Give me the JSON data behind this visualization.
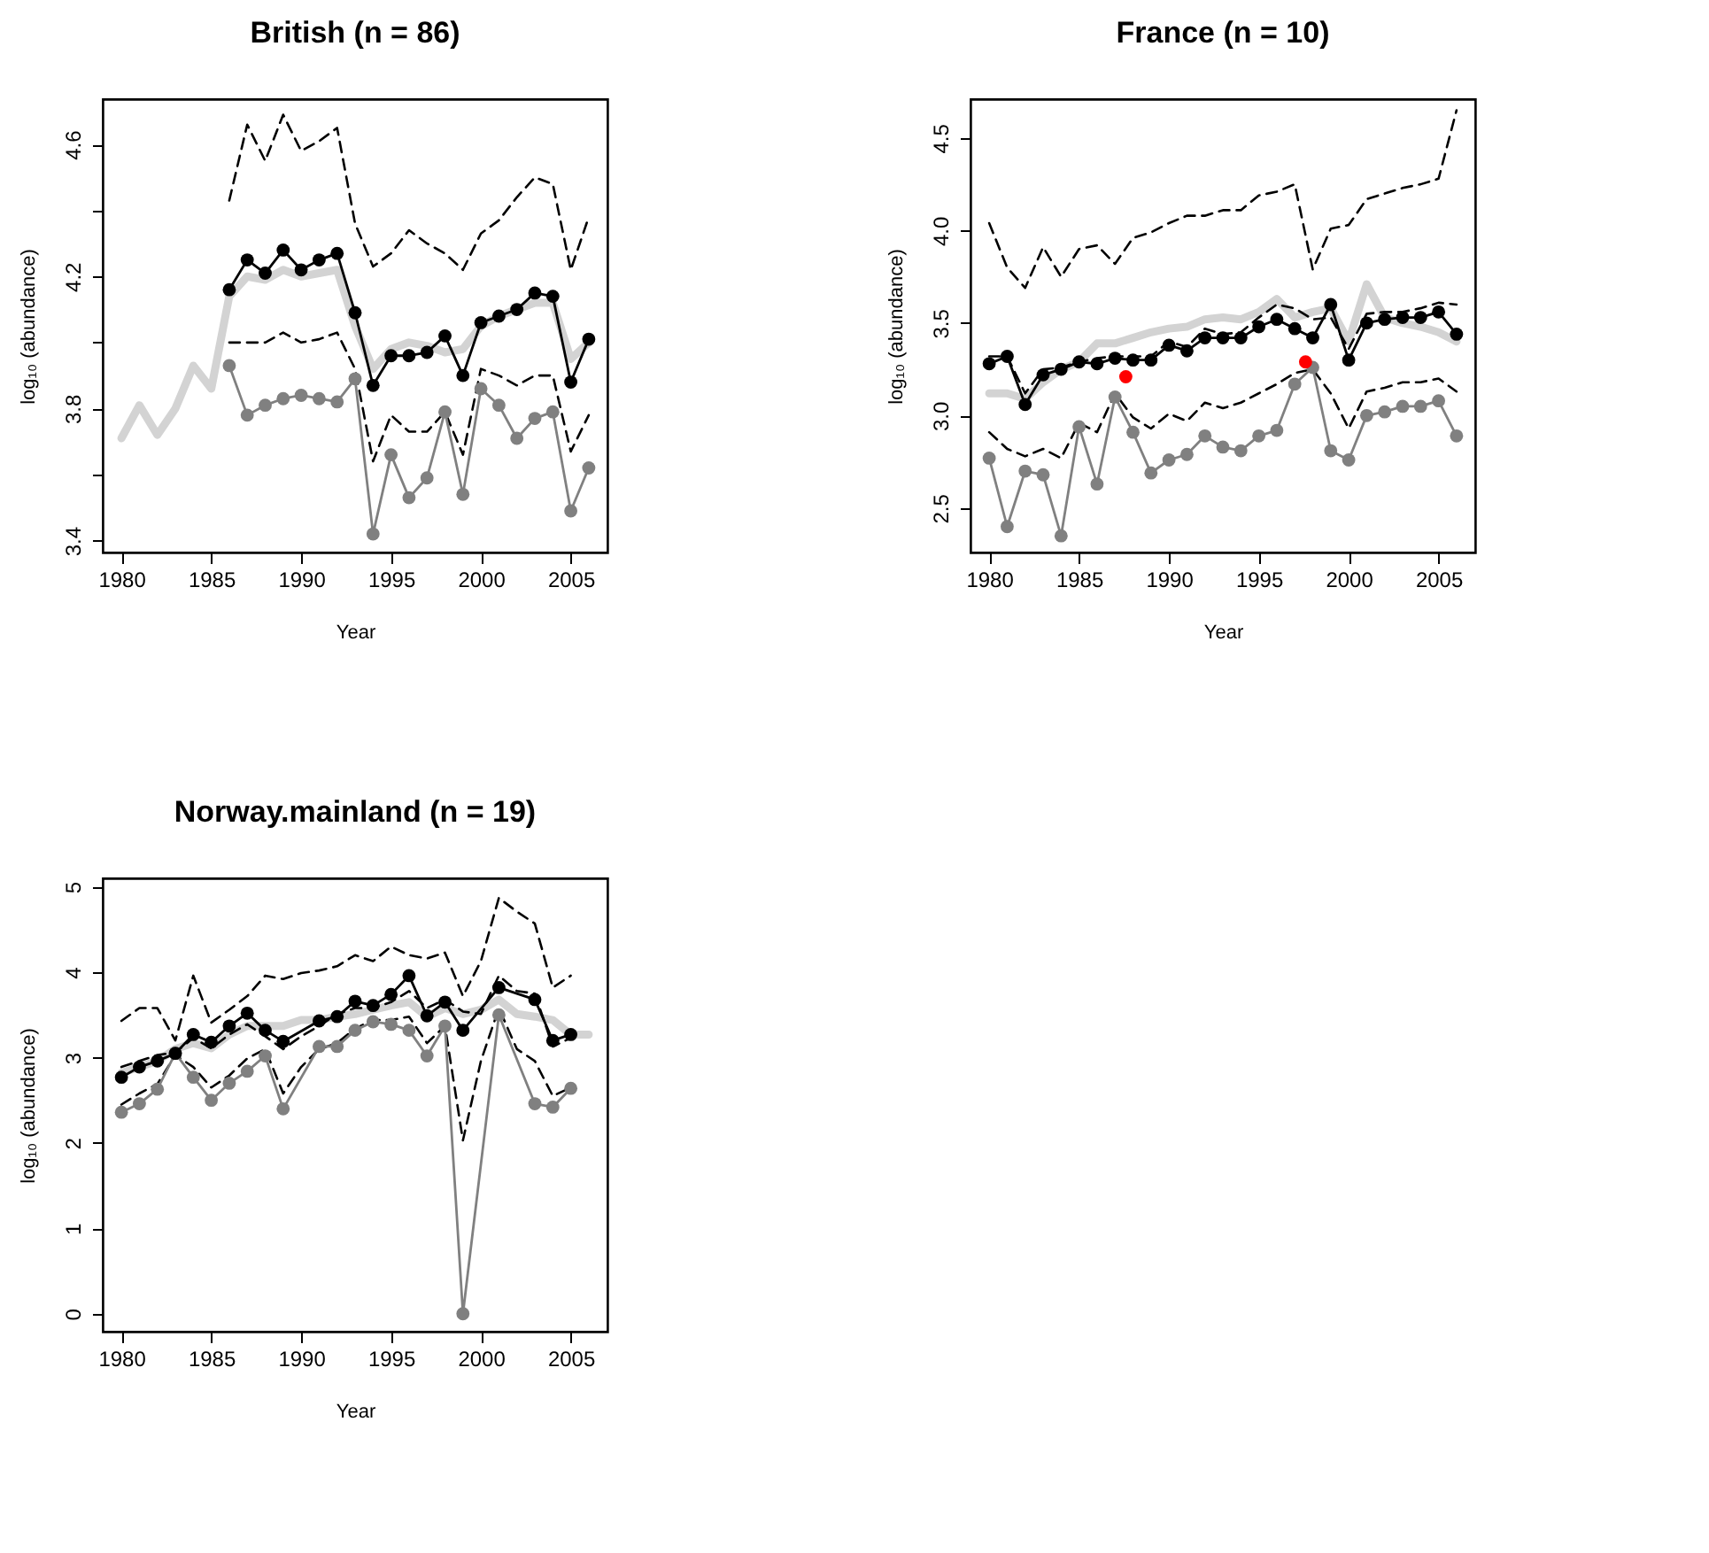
{
  "chart_data": [
    {
      "type": "line",
      "title": "British (n = 86)",
      "xlabel": "Year",
      "ylabel": "log₁₀ (abundance)",
      "xlim": [
        1978.96,
        2007.04
      ],
      "xticks": [
        1980,
        1985,
        1990,
        1995,
        2000,
        2005
      ],
      "ylim": [
        3.364,
        4.737
      ],
      "yticks": [
        3.4,
        {
          "value": 3.6,
          "label": null
        },
        3.8,
        {
          "value": 4.0,
          "label": null
        },
        4.2,
        {
          "value": 4.4,
          "label": null
        },
        4.6
      ],
      "series": [
        {
          "type": "line",
          "color": "#d3d3d3",
          "marker": "none",
          "line_style": "solid",
          "x": [
            1980,
            1981,
            1982,
            1983,
            1984,
            1985,
            1986,
            1987,
            1988,
            1989,
            1990,
            1991,
            1992,
            1993,
            1994,
            1995,
            1996,
            1997,
            1998,
            1999,
            2000,
            2001,
            2002,
            2003,
            2004,
            2005,
            2006
          ],
          "values": [
            3.71,
            3.81,
            3.72,
            3.8,
            3.93,
            3.86,
            4.14,
            4.2,
            4.19,
            4.22,
            4.2,
            4.21,
            4.22,
            4.05,
            3.92,
            3.98,
            4.0,
            3.99,
            3.97,
            3.98,
            4.05,
            4.08,
            4.1,
            4.12,
            4.12,
            3.95,
            4.0
          ]
        },
        {
          "type": "line",
          "color": "#000000",
          "marker": "none",
          "line_style": "dashed",
          "x": [
            1986,
            1987,
            1988,
            1989,
            1990,
            1991,
            1992,
            1993,
            1994,
            1995,
            1996,
            1997,
            1998,
            1999,
            2000,
            2001,
            2002,
            2003,
            2004,
            2005,
            2006
          ],
          "values": [
            4.43,
            4.66,
            4.55,
            4.69,
            4.58,
            4.61,
            4.65,
            4.36,
            4.23,
            4.27,
            4.34,
            4.3,
            4.27,
            4.22,
            4.33,
            4.37,
            4.44,
            4.5,
            4.48,
            4.22,
            4.38
          ]
        },
        {
          "type": "line",
          "color": "#000000",
          "marker": "none",
          "line_style": "dashed",
          "x": [
            1986,
            1987,
            1988,
            1989,
            1990,
            1991,
            1992,
            1993,
            1994,
            1995,
            1996,
            1997,
            1998,
            1999,
            2000,
            2001,
            2002,
            2003,
            2004,
            2005,
            2006
          ],
          "values": [
            4.0,
            4.0,
            4.0,
            4.03,
            4.0,
            4.01,
            4.03,
            3.92,
            3.64,
            3.78,
            3.73,
            3.73,
            3.79,
            3.66,
            3.92,
            3.9,
            3.87,
            3.9,
            3.9,
            3.67,
            3.78
          ]
        },
        {
          "type": "line",
          "color": "#808080",
          "marker": "circle",
          "line_style": "solid",
          "x": [
            1986,
            1987,
            1988,
            1989,
            1990,
            1991,
            1992,
            1993,
            1994,
            1995,
            1996,
            1997,
            1998,
            1999,
            2000,
            2001,
            2002,
            2003,
            2004,
            2005,
            2006
          ],
          "values": [
            3.93,
            3.78,
            3.81,
            3.83,
            3.84,
            3.83,
            3.82,
            3.89,
            3.42,
            3.66,
            3.53,
            3.59,
            3.79,
            3.54,
            3.86,
            3.81,
            3.71,
            3.77,
            3.79,
            3.49,
            3.62
          ]
        },
        {
          "type": "line",
          "color": "#000000",
          "marker": "circle",
          "line_style": "solid",
          "x": [
            1986,
            1987,
            1988,
            1989,
            1990,
            1991,
            1992,
            1993,
            1994,
            1995,
            1996,
            1997,
            1998,
            1999,
            2000,
            2001,
            2002,
            2003,
            2004,
            2005,
            2006
          ],
          "values": [
            4.16,
            4.25,
            4.21,
            4.28,
            4.22,
            4.25,
            4.27,
            4.09,
            3.87,
            3.96,
            3.96,
            3.97,
            4.02,
            3.9,
            4.06,
            4.08,
            4.1,
            4.15,
            4.14,
            3.88,
            4.01
          ]
        }
      ]
    },
    {
      "type": "line",
      "title": "France (n = 10)",
      "xlabel": "Year",
      "ylabel": "log₁₀ (abundance)",
      "xlim": [
        1978.96,
        2007.04
      ],
      "xticks": [
        1980,
        1985,
        1990,
        1995,
        2000,
        2005
      ],
      "ylim": [
        2.26,
        4.71
      ],
      "yticks": [
        2.5,
        {
          "value": 3,
          "label": "3.0"
        },
        3.5,
        {
          "value": 4,
          "label": "4.0"
        },
        4.5
      ],
      "x": [
        1980,
        1981,
        1982,
        1983,
        1984,
        1985,
        1986,
        1987,
        1988,
        1989,
        1990,
        1991,
        1992,
        1993,
        1994,
        1995,
        1996,
        1997,
        1998,
        1999,
        2000,
        2001,
        2002,
        2003,
        2004,
        2005,
        2006
      ],
      "series": [
        {
          "type": "line",
          "color": "#d3d3d3",
          "marker": "none",
          "line_style": "solid",
          "values": [
            3.12,
            3.12,
            3.09,
            3.18,
            3.25,
            3.29,
            3.39,
            3.39,
            3.42,
            3.45,
            3.47,
            3.48,
            3.52,
            3.53,
            3.52,
            3.56,
            3.63,
            3.53,
            3.56,
            3.58,
            3.4,
            3.71,
            3.53,
            3.5,
            3.48,
            3.45,
            3.4
          ]
        },
        {
          "type": "line",
          "color": "#000000",
          "marker": "none",
          "line_style": "dashed",
          "values": [
            4.04,
            3.8,
            3.69,
            3.91,
            3.75,
            3.9,
            3.92,
            3.82,
            3.96,
            3.99,
            4.04,
            4.08,
            4.08,
            4.11,
            4.11,
            4.19,
            4.21,
            4.25,
            3.79,
            4.01,
            4.03,
            4.17,
            4.2,
            4.23,
            4.25,
            4.28,
            4.65
          ]
        },
        {
          "type": "line",
          "color": "#000000",
          "marker": "none",
          "line_style": "dashed",
          "values": [
            3.32,
            3.32,
            3.12,
            3.25,
            3.26,
            3.29,
            3.31,
            3.32,
            3.32,
            3.32,
            3.4,
            3.37,
            3.47,
            3.44,
            3.45,
            3.53,
            3.6,
            3.58,
            3.52,
            3.53,
            3.36,
            3.55,
            3.56,
            3.56,
            3.58,
            3.61,
            3.6
          ]
        },
        {
          "type": "line",
          "color": "#000000",
          "marker": "none",
          "line_style": "dashed",
          "values": [
            2.91,
            2.82,
            2.78,
            2.82,
            2.77,
            2.96,
            2.91,
            3.12,
            2.99,
            2.93,
            3.01,
            2.97,
            3.07,
            3.04,
            3.07,
            3.12,
            3.17,
            3.23,
            3.25,
            3.12,
            2.93,
            3.13,
            3.15,
            3.18,
            3.18,
            3.2,
            3.13
          ]
        },
        {
          "type": "line",
          "color": "#808080",
          "marker": "circle",
          "line_style": "solid",
          "values": [
            2.77,
            2.4,
            2.7,
            2.68,
            2.35,
            2.94,
            2.63,
            3.1,
            2.91,
            2.69,
            2.76,
            2.79,
            2.89,
            2.83,
            2.81,
            2.89,
            2.92,
            3.17,
            3.26,
            2.81,
            2.76,
            3.0,
            3.02,
            3.05,
            3.05,
            3.08,
            2.89
          ]
        },
        {
          "type": "line",
          "color": "#000000",
          "marker": "circle",
          "line_style": "solid",
          "values": [
            3.28,
            3.32,
            3.06,
            3.22,
            3.25,
            3.29,
            3.28,
            3.31,
            3.3,
            3.3,
            3.38,
            3.35,
            3.42,
            3.42,
            3.42,
            3.48,
            3.52,
            3.47,
            3.42,
            3.6,
            3.3,
            3.5,
            3.52,
            3.53,
            3.53,
            3.56,
            3.44
          ]
        },
        {
          "type": "scatter",
          "color": "#ff0000",
          "marker": "circle",
          "x": [
            1987.6,
            1997.6
          ],
          "values": [
            3.21,
            3.29
          ]
        }
      ]
    },
    {
      "type": "line",
      "title": "Norway.mainland (n = 19)",
      "xlabel": "Year",
      "ylabel": "log₁₀ (abundance)",
      "xlim": [
        1978.96,
        2007.04
      ],
      "xticks": [
        1980,
        1985,
        1990,
        1995,
        2000,
        2005
      ],
      "ylim": [
        -0.21,
        5.1
      ],
      "yticks": [
        0,
        1,
        2,
        3,
        4,
        5
      ],
      "series": [
        {
          "type": "line",
          "color": "#d3d3d3",
          "marker": "none",
          "line_style": "solid",
          "x": [
            1980,
            1981,
            1982,
            1983,
            1984,
            1985,
            1986,
            1987,
            1988,
            1989,
            1990,
            1991,
            1992,
            1993,
            1994,
            1995,
            1996,
            1997,
            1998,
            1999,
            2000,
            2001,
            2002,
            2003,
            2004,
            2005,
            2006
          ],
          "values": [
            2.82,
            2.89,
            2.96,
            3.1,
            3.17,
            3.11,
            3.27,
            3.37,
            3.37,
            3.37,
            3.44,
            3.44,
            3.48,
            3.51,
            3.56,
            3.61,
            3.65,
            3.48,
            3.58,
            3.51,
            3.56,
            3.68,
            3.51,
            3.48,
            3.44,
            3.27,
            3.27
          ]
        },
        {
          "type": "line",
          "color": "#000000",
          "marker": "none",
          "line_style": "dashed",
          "x": [
            1980,
            1981,
            1982,
            1983,
            1984,
            1985,
            1986,
            1987,
            1988,
            1989,
            1990,
            1991,
            1992,
            1993,
            1994,
            1995,
            1996,
            1997,
            1998,
            1999,
            2000,
            2001,
            2002,
            2003,
            2004,
            2005
          ],
          "values": [
            3.43,
            3.58,
            3.58,
            3.2,
            3.96,
            3.41,
            3.56,
            3.72,
            3.96,
            3.92,
            3.99,
            4.02,
            4.07,
            4.2,
            4.13,
            4.3,
            4.2,
            4.16,
            4.23,
            3.72,
            4.13,
            4.87,
            4.71,
            4.57,
            3.82,
            3.96
          ]
        },
        {
          "type": "line",
          "color": "#000000",
          "marker": "none",
          "line_style": "dashed",
          "x": [
            1980,
            1981,
            1982,
            1983,
            1984,
            1985,
            1986,
            1987,
            1988,
            1989,
            1990,
            1991,
            1992,
            1993,
            1994,
            1995,
            1996,
            1997,
            1998,
            1999,
            2000,
            2001,
            2002,
            2003,
            2004,
            2005
          ],
          "values": [
            2.89,
            2.96,
            3.03,
            3.06,
            3.23,
            3.11,
            3.27,
            3.39,
            3.25,
            3.1,
            3.25,
            3.37,
            3.51,
            3.58,
            3.58,
            3.65,
            3.78,
            3.58,
            3.68,
            3.54,
            3.51,
            3.96,
            3.78,
            3.75,
            3.13,
            3.23
          ]
        },
        {
          "type": "line",
          "color": "#000000",
          "marker": "none",
          "line_style": "dashed",
          "x": [
            1980,
            1981,
            1982,
            1983,
            1984,
            1985,
            1986,
            1987,
            1988,
            1989,
            1990,
            1991,
            1992,
            1993,
            1994,
            1995,
            1996,
            1997,
            1998,
            1999,
            2000,
            2001,
            2002,
            2003,
            2004,
            2005
          ],
          "values": [
            2.45,
            2.58,
            2.69,
            3.03,
            2.89,
            2.65,
            2.79,
            2.99,
            3.1,
            2.58,
            2.89,
            3.1,
            3.17,
            3.34,
            3.44,
            3.44,
            3.48,
            3.17,
            3.37,
            2.03,
            2.96,
            3.58,
            3.1,
            2.96,
            2.55,
            2.65
          ]
        },
        {
          "type": "line",
          "color": "#808080",
          "marker": "circle",
          "line_style": "solid",
          "x": [
            1980,
            1981,
            1982,
            1983,
            1984,
            1985,
            1986,
            1987,
            1988,
            1989,
            1991,
            1992,
            1993,
            1994,
            1995,
            1996,
            1997,
            1998,
            1999,
            2001,
            2003,
            2004,
            2005
          ],
          "values": [
            2.36,
            2.46,
            2.63,
            3.05,
            2.77,
            2.5,
            2.7,
            2.84,
            3.02,
            2.4,
            3.13,
            3.13,
            3.32,
            3.42,
            3.39,
            3.32,
            3.02,
            3.37,
            0,
            3.5,
            2.46,
            2.42,
            2.64
          ]
        },
        {
          "type": "line",
          "color": "#000000",
          "marker": "circle",
          "line_style": "solid",
          "x": [
            1980,
            1981,
            1982,
            1983,
            1984,
            1985,
            1986,
            1987,
            1988,
            1989,
            1991,
            1992,
            1993,
            1994,
            1995,
            1996,
            1997,
            1998,
            1999,
            2001,
            2003,
            2004,
            2005
          ],
          "values": [
            2.77,
            2.89,
            2.96,
            3.05,
            3.27,
            3.18,
            3.37,
            3.52,
            3.32,
            3.19,
            3.43,
            3.48,
            3.66,
            3.61,
            3.74,
            3.96,
            3.49,
            3.65,
            3.32,
            3.82,
            3.68,
            3.2,
            3.27
          ]
        }
      ]
    }
  ]
}
